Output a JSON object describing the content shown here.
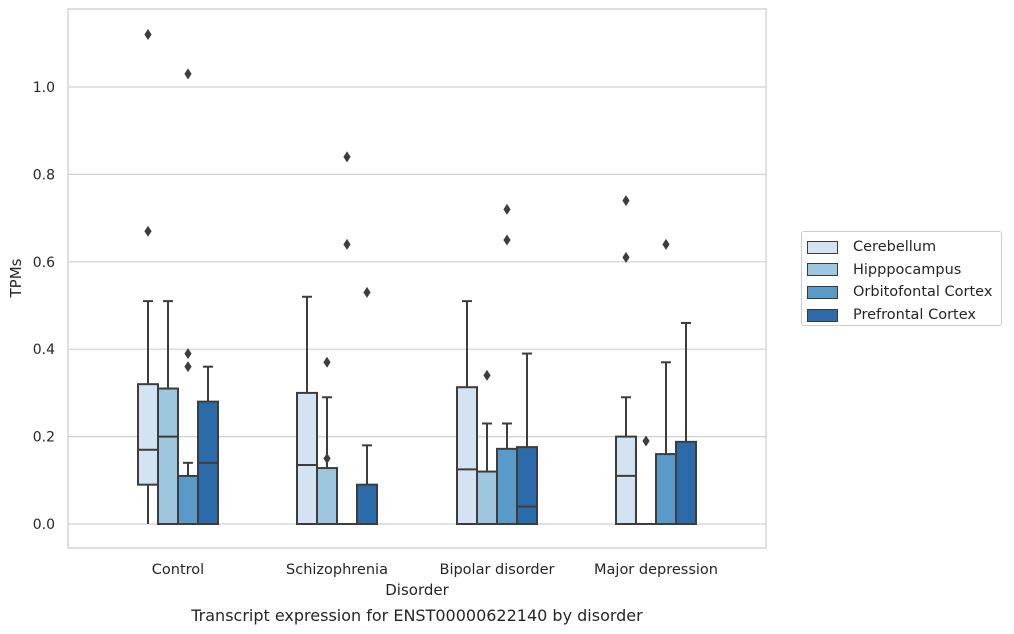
{
  "chart_data": {
    "type": "box",
    "xlabel": "Disorder",
    "ylabel": "TPMs",
    "caption": "Transcript expression for ENST00000622140 by disorder",
    "ylim": [
      -0.055,
      1.18
    ],
    "yticks": [
      "0.0",
      "0.2",
      "0.4",
      "0.6",
      "0.8",
      "1.0"
    ],
    "grid": "horizontal",
    "legend_position": "right",
    "categories": [
      "Control",
      "Schizophrenia",
      "Bipolar disorder",
      "Major depression"
    ],
    "series": [
      {
        "name": "Cerebellum",
        "color": "#d4e3f1",
        "boxes": [
          {
            "whislo": 0.0,
            "q1": 0.09,
            "med": 0.17,
            "q3": 0.32,
            "whishi": 0.51,
            "fliers": [
              0.67,
              1.12
            ]
          },
          {
            "whislo": 0.0,
            "q1": 0.0,
            "med": 0.135,
            "q3": 0.3,
            "whishi": 0.52,
            "fliers": []
          },
          {
            "whislo": 0.0,
            "q1": 0.0,
            "med": 0.125,
            "q3": 0.313,
            "whishi": 0.51,
            "fliers": []
          },
          {
            "whislo": 0.0,
            "q1": 0.0,
            "med": 0.11,
            "q3": 0.2,
            "whishi": 0.29,
            "fliers": [
              0.61,
              0.74
            ]
          }
        ]
      },
      {
        "name": "Hipppocampus",
        "color": "#9ec7df",
        "boxes": [
          {
            "whislo": 0.0,
            "q1": 0.0,
            "med": 0.2,
            "q3": 0.31,
            "whishi": 0.51,
            "fliers": []
          },
          {
            "whislo": 0.0,
            "q1": 0.0,
            "med": 0.0,
            "q3": 0.128,
            "whishi": 0.29,
            "fliers": [
              0.15,
              0.37
            ]
          },
          {
            "whislo": 0.0,
            "q1": 0.0,
            "med": 0.0,
            "q3": 0.12,
            "whishi": 0.23,
            "fliers": [
              0.34
            ]
          },
          {
            "whislo": 0.0,
            "q1": 0.0,
            "med": 0.0,
            "q3": 0.0,
            "whishi": 0.0,
            "fliers": [
              0.19
            ]
          }
        ]
      },
      {
        "name": "Orbitofontal Cortex",
        "color": "#5a9ac8",
        "boxes": [
          {
            "whislo": 0.0,
            "q1": 0.0,
            "med": 0.0,
            "q3": 0.11,
            "whishi": 0.14,
            "fliers": [
              0.36,
              0.39,
              1.03
            ]
          },
          {
            "whislo": 0.0,
            "q1": 0.0,
            "med": 0.0,
            "q3": 0.0,
            "whishi": 0.0,
            "fliers": [
              0.64,
              0.84
            ]
          },
          {
            "whislo": 0.0,
            "q1": 0.0,
            "med": 0.0,
            "q3": 0.172,
            "whishi": 0.23,
            "fliers": [
              0.65,
              0.72
            ]
          },
          {
            "whislo": 0.0,
            "q1": 0.0,
            "med": 0.0,
            "q3": 0.16,
            "whishi": 0.37,
            "fliers": [
              0.64
            ]
          }
        ]
      },
      {
        "name": "Prefrontal Cortex",
        "color": "#2b6ba9",
        "boxes": [
          {
            "whislo": 0.0,
            "q1": 0.0,
            "med": 0.14,
            "q3": 0.28,
            "whishi": 0.36,
            "fliers": []
          },
          {
            "whislo": 0.0,
            "q1": 0.0,
            "med": 0.0,
            "q3": 0.09,
            "whishi": 0.18,
            "fliers": [
              0.53
            ]
          },
          {
            "whislo": 0.0,
            "q1": 0.0,
            "med": 0.04,
            "q3": 0.176,
            "whishi": 0.39,
            "fliers": []
          },
          {
            "whislo": 0.0,
            "q1": 0.0,
            "med": 0.0,
            "q3": 0.188,
            "whishi": 0.46,
            "fliers": []
          }
        ]
      }
    ]
  }
}
